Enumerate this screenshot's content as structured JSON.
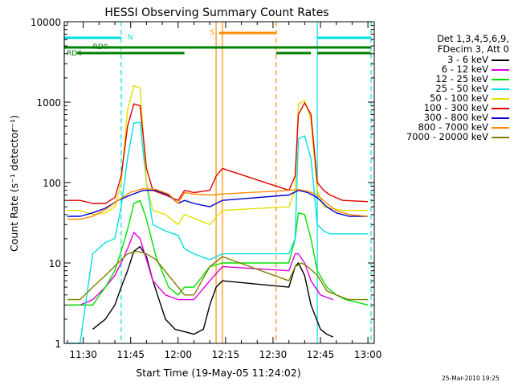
{
  "chart_data": {
    "type": "line",
    "title": "HESSI Observing Summary Count Rates",
    "xlabel": "Start Time (19-May-05 11:24:02)",
    "ylabel": "Count Rate (s⁻¹ detector⁻¹)",
    "xscale": "time (hh:mm)",
    "yscale": "log",
    "xlim": [
      "11:24",
      "13:02"
    ],
    "ylim": [
      1,
      10000
    ],
    "x_ticks": [
      "11:30",
      "11:45",
      "12:00",
      "12:15",
      "12:30",
      "12:45",
      "13:00"
    ],
    "y_ticks": [
      "1",
      "10",
      "100",
      "1000",
      "10000"
    ],
    "legend_position": "top-right",
    "legend_header": [
      "Det 1,3,4,5,6,9,",
      "FDecim 3, Att 0"
    ],
    "series": [
      {
        "name": "3 - 6 keV",
        "color": "#000000",
        "x": [
          "11:33",
          "11:37",
          "11:40",
          "11:42",
          "11:44",
          "11:46",
          "11:48",
          "11:50",
          "11:52",
          "11:56",
          "11:59",
          "12:02",
          "12:05",
          "12:08",
          "12:10",
          "12:12",
          "12:14",
          "12:35",
          "12:37",
          "12:38",
          "12:40",
          "12:42",
          "12:45",
          "12:47",
          "12:49"
        ],
        "y": [
          1.5,
          2,
          3,
          5,
          8,
          14,
          16,
          12,
          6,
          2,
          1.5,
          1.4,
          1.3,
          1.5,
          3,
          5,
          6,
          5,
          9,
          10,
          7,
          3,
          1.5,
          1.3,
          1.2
        ]
      },
      {
        "name": "6 - 12 keV",
        "color": "#e000e0",
        "x": [
          "11:25",
          "11:29",
          "11:33",
          "11:37",
          "11:40",
          "11:42",
          "11:44",
          "11:46",
          "11:48",
          "11:50",
          "11:52",
          "11:56",
          "12:00",
          "12:05",
          "12:10",
          "12:14",
          "12:35",
          "12:37",
          "12:38",
          "12:40",
          "12:42",
          "12:45",
          "12:49"
        ],
        "y": [
          3,
          3,
          3.5,
          5,
          7,
          10,
          15,
          24,
          20,
          11,
          6,
          4,
          3.5,
          3.5,
          6,
          9,
          8,
          13,
          13,
          10,
          6,
          4,
          3.5
        ]
      },
      {
        "name": "12 - 25 keV",
        "color": "#00e000",
        "x": [
          "11:25",
          "11:28",
          "11:33",
          "11:37",
          "11:40",
          "11:42",
          "11:44",
          "11:46",
          "11:48",
          "11:50",
          "11:53",
          "11:57",
          "12:00",
          "12:02",
          "12:05",
          "12:10",
          "12:14",
          "12:35",
          "12:37",
          "12:38",
          "12:40",
          "12:42",
          "12:44",
          "12:47",
          "12:50",
          "12:53",
          "13:00"
        ],
        "y": [
          3,
          3,
          3,
          5,
          8,
          14,
          26,
          55,
          60,
          35,
          12,
          5,
          4,
          5,
          5,
          9,
          10,
          10,
          20,
          42,
          40,
          20,
          8,
          5,
          4,
          3.5,
          3
        ]
      },
      {
        "name": "25 - 50 keV",
        "color": "#00e0e0",
        "x": [
          "11:25",
          "11:29",
          "11:33",
          "11:37",
          "11:40",
          "11:42",
          "11:44",
          "11:46",
          "11:48",
          "11:50",
          "11:52",
          "11:56",
          "12:00",
          "12:02",
          "12:05",
          "12:10",
          "12:14",
          "12:35",
          "12:37",
          "12:38",
          "12:40",
          "12:42",
          "12:44",
          "12:46",
          "12:48",
          "12:52",
          "13:00"
        ],
        "y": [
          1,
          1,
          13,
          18,
          20,
          50,
          200,
          550,
          560,
          100,
          30,
          25,
          22,
          15,
          13,
          11,
          13,
          13,
          20,
          350,
          380,
          200,
          30,
          25,
          23,
          23,
          23
        ]
      },
      {
        "name": "50 - 100 keV",
        "color": "#e0e000",
        "x": [
          "11:25",
          "11:29",
          "11:33",
          "11:37",
          "11:40",
          "11:42",
          "11:44",
          "11:46",
          "11:48",
          "11:50",
          "11:52",
          "11:56",
          "12:00",
          "12:02",
          "12:05",
          "12:10",
          "12:14",
          "12:35",
          "12:37",
          "12:38",
          "12:40",
          "12:42",
          "12:44",
          "12:46",
          "12:48",
          "12:52",
          "13:00"
        ],
        "y": [
          45,
          45,
          40,
          42,
          50,
          100,
          800,
          1600,
          1500,
          100,
          45,
          40,
          30,
          40,
          36,
          30,
          45,
          50,
          80,
          950,
          1050,
          600,
          80,
          50,
          48,
          45,
          45
        ]
      },
      {
        "name": "100 - 300 keV",
        "color": "#e00000",
        "x": [
          "11:25",
          "11:29",
          "11:33",
          "11:37",
          "11:40",
          "11:42",
          "11:44",
          "11:46",
          "11:48",
          "11:50",
          "11:52",
          "11:56",
          "12:00",
          "12:02",
          "12:05",
          "12:10",
          "12:12",
          "12:14",
          "12:35",
          "12:37",
          "12:38",
          "12:40",
          "12:42",
          "12:44",
          "12:46",
          "12:48",
          "12:52",
          "13:00"
        ],
        "y": [
          60,
          60,
          55,
          55,
          65,
          120,
          500,
          950,
          900,
          150,
          80,
          70,
          60,
          80,
          75,
          80,
          120,
          150,
          80,
          120,
          700,
          980,
          700,
          100,
          80,
          70,
          60,
          58
        ]
      },
      {
        "name": "300 - 800 keV",
        "color": "#0000d0",
        "x": [
          "11:25",
          "11:29",
          "11:33",
          "11:37",
          "11:41",
          "11:45",
          "11:49",
          "11:53",
          "11:57",
          "12:00",
          "12:02",
          "12:05",
          "12:10",
          "12:14",
          "12:35",
          "12:38",
          "12:41",
          "12:44",
          "12:47",
          "12:50",
          "12:54",
          "13:00"
        ],
        "y": [
          38,
          38,
          42,
          48,
          60,
          70,
          80,
          80,
          70,
          55,
          60,
          55,
          50,
          60,
          70,
          80,
          75,
          65,
          50,
          42,
          38,
          38
        ]
      },
      {
        "name": "800 - 7000 keV",
        "color": "#ff8c00",
        "x": [
          "11:25",
          "11:29",
          "11:33",
          "11:37",
          "11:41",
          "11:45",
          "11:49",
          "11:53",
          "11:57",
          "12:00",
          "12:02",
          "12:05",
          "12:10",
          "12:14",
          "12:35",
          "12:38",
          "12:41",
          "12:44",
          "12:47",
          "12:50",
          "12:54",
          "13:00"
        ],
        "y": [
          35,
          35,
          38,
          46,
          60,
          76,
          84,
          82,
          72,
          55,
          75,
          72,
          70,
          72,
          80,
          82,
          78,
          70,
          55,
          45,
          40,
          38
        ]
      },
      {
        "name": "7000 - 20000 keV",
        "color": "#808000",
        "x": [
          "11:25",
          "11:29",
          "11:33",
          "11:37",
          "11:41",
          "11:44",
          "11:47",
          "11:50",
          "11:53",
          "11:57",
          "12:00",
          "12:02",
          "12:05",
          "12:10",
          "12:14",
          "12:35",
          "12:37",
          "12:39",
          "12:41",
          "12:44",
          "12:47",
          "12:50",
          "12:54",
          "13:00"
        ],
        "y": [
          3.5,
          3.5,
          5,
          7,
          10,
          13,
          14,
          13,
          11,
          7,
          5,
          4,
          4,
          9,
          12,
          6,
          9,
          10,
          9,
          7,
          4.5,
          4,
          3.5,
          3.5
        ]
      }
    ],
    "status_bars": [
      {
        "label": "N",
        "color": "#00e0e0",
        "segments": [
          [
            "11:24",
            "11:42"
          ],
          [
            "12:44",
            "13:01"
          ]
        ]
      },
      {
        "label": "S",
        "color": "#ff8c00",
        "segments": [
          [
            "12:13",
            "12:31"
          ]
        ]
      },
      {
        "label": "RD0",
        "color": "#008000",
        "segments": [
          [
            "11:24",
            "12:02"
          ],
          [
            "12:02",
            "12:31"
          ],
          [
            "12:31",
            "13:01"
          ]
        ]
      },
      {
        "label": "RD4",
        "color": "#008000",
        "segments": [
          [
            "11:28",
            "12:02"
          ],
          [
            "12:31",
            "12:42"
          ],
          [
            "12:44",
            "13:01"
          ]
        ]
      }
    ],
    "vertical_markers": [
      {
        "x": "11:24",
        "color": "#00e0e0",
        "style": "solid"
      },
      {
        "x": "11:42",
        "color": "#00e0e0",
        "style": "dashed"
      },
      {
        "x": "12:12",
        "color": "#ff8c00",
        "style": "solid"
      },
      {
        "x": "12:14",
        "color": "#ff8c00",
        "style": "solid"
      },
      {
        "x": "12:31",
        "color": "#ff8c00",
        "style": "dashed"
      },
      {
        "x": "12:44",
        "color": "#00e0e0",
        "style": "solid"
      },
      {
        "x": "13:01",
        "color": "#00e0e0",
        "style": "dashed"
      }
    ],
    "footer_stamp": "25-Mar-2010 19:25"
  }
}
